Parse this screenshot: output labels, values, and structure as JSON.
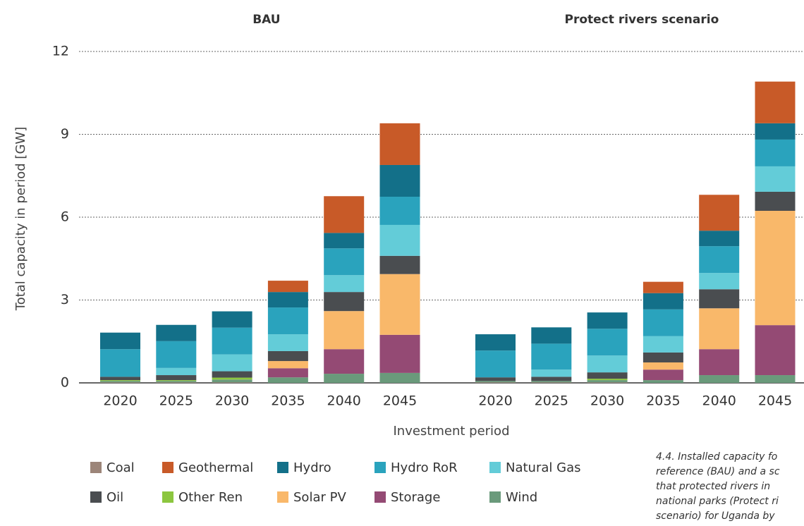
{
  "chart_data": {
    "type": "bar",
    "stacked": true,
    "groups": [
      "BAU",
      "Protect rivers scenario"
    ],
    "categories": [
      "2020",
      "2025",
      "2030",
      "2035",
      "2040",
      "2045",
      "2020",
      "2025",
      "2030",
      "2035",
      "2040",
      "2045"
    ],
    "ylabel": "Total capacity in period [GW]",
    "xlabel": "Investment period",
    "ylim": [
      0,
      12
    ],
    "yticks": [
      0,
      3,
      6,
      9,
      12
    ],
    "grid": true,
    "series": [
      {
        "name": "Coal",
        "color": "#9c8579",
        "values": [
          0.02,
          0.02,
          0.02,
          0,
          0,
          0,
          0.02,
          0.02,
          0.02,
          0,
          0,
          0
        ]
      },
      {
        "name": "Geothermal",
        "color": "#c85a28",
        "values": [
          0,
          0,
          0,
          0.41,
          1.33,
          1.51,
          0,
          0,
          0,
          0.41,
          1.3,
          1.51
        ]
      },
      {
        "name": "Hydro",
        "color": "#137089",
        "values": [
          0.6,
          0.59,
          0.59,
          0.56,
          0.56,
          1.15,
          0.59,
          0.59,
          0.59,
          0.59,
          0.56,
          0.59
        ]
      },
      {
        "name": "Hydro RoR",
        "color": "#2aa3bd",
        "values": [
          1.0,
          0.97,
          0.97,
          0.97,
          0.97,
          1.02,
          0.97,
          0.94,
          0.97,
          0.97,
          0.97,
          0.97
        ]
      },
      {
        "name": "Natural Gas",
        "color": "#63ccd8",
        "values": [
          0,
          0.26,
          0.61,
          0.61,
          0.61,
          1.12,
          0,
          0.26,
          0.61,
          0.59,
          0.59,
          0.92
        ]
      },
      {
        "name": "Oil",
        "color": "#4a4d50",
        "values": [
          0.12,
          0.18,
          0.23,
          0.36,
          0.69,
          0.66,
          0.13,
          0.15,
          0.23,
          0.36,
          0.69,
          0.69
        ]
      },
      {
        "name": "Other Ren",
        "color": "#8cc63f",
        "values": [
          0.03,
          0.03,
          0.07,
          0,
          0,
          0,
          0,
          0,
          0.05,
          0,
          0,
          0
        ]
      },
      {
        "name": "Solar PV",
        "color": "#f9b86a",
        "values": [
          0,
          0,
          0,
          0.26,
          1.38,
          2.2,
          0,
          0,
          0,
          0.26,
          1.48,
          4.14
        ]
      },
      {
        "name": "Storage",
        "color": "#944a74",
        "values": [
          0,
          0,
          0,
          0.33,
          0.89,
          1.38,
          0,
          0,
          0,
          0.38,
          0.94,
          1.81
        ]
      },
      {
        "name": "Wind",
        "color": "#6a9a7b",
        "values": [
          0.05,
          0.05,
          0.1,
          0.2,
          0.33,
          0.36,
          0.05,
          0.05,
          0.08,
          0.1,
          0.28,
          0.28
        ]
      }
    ],
    "caption": [
      "4.4. Installed capacity fo",
      "reference (BAU) and a sc",
      "that protected rivers in",
      "national parks (Protect ri",
      "scenario) for Uganda by"
    ]
  }
}
